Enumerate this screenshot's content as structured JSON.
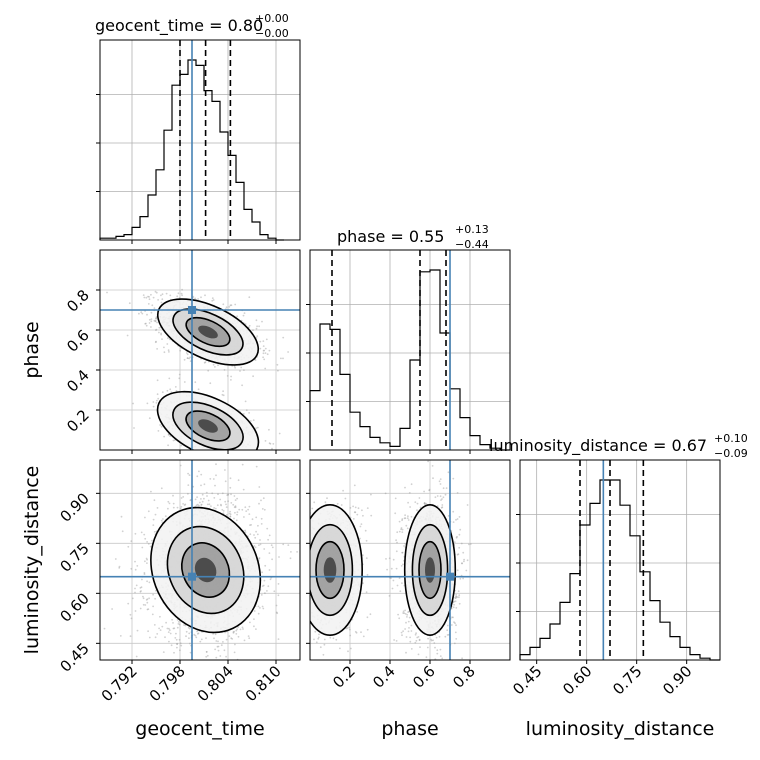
{
  "chart_data": {
    "type": "corner",
    "parameters": [
      "geocent_time",
      "phase",
      "luminosity_distance"
    ],
    "truth_color": "#4682b4",
    "grid": true,
    "panels": {
      "geocent_time": {
        "title": {
          "name": "geocent_time",
          "value": "0.80",
          "plus": "+0.00",
          "minus": "−0.00"
        },
        "xlim": [
          0.788,
          0.813
        ],
        "xticks": [
          "0.792",
          "0.798",
          "0.804",
          "0.810"
        ],
        "xtick_values": [
          0.792,
          0.798,
          0.804,
          0.81
        ],
        "quantiles": [
          0.798,
          0.8012,
          0.8043
        ],
        "truth": 0.7995,
        "hist": {
          "edges": [
            0.788,
            0.79,
            0.791,
            0.792,
            0.793,
            0.794,
            0.795,
            0.796,
            0.797,
            0.798,
            0.799,
            0.8,
            0.801,
            0.802,
            0.803,
            0.804,
            0.805,
            0.806,
            0.807,
            0.808,
            0.809,
            0.81,
            0.811
          ],
          "counts": [
            0.01,
            0.02,
            0.03,
            0.07,
            0.13,
            0.25,
            0.39,
            0.61,
            0.86,
            0.92,
            1.0,
            0.97,
            0.83,
            0.77,
            0.6,
            0.47,
            0.32,
            0.17,
            0.1,
            0.03,
            0.01,
            0.0
          ]
        }
      },
      "phase": {
        "title": {
          "name": "phase",
          "value": "0.55",
          "plus": "+0.13",
          "minus": "−0.44"
        },
        "xlim": [
          0.0,
          1.0
        ],
        "xticks": [
          "0.2",
          "0.4",
          "0.6",
          "0.8"
        ],
        "xtick_values": [
          0.2,
          0.4,
          0.6,
          0.8
        ],
        "yticks": [
          "0.2",
          "0.4",
          "0.6",
          "0.8"
        ],
        "ytick_values": [
          0.2,
          0.4,
          0.6,
          0.8
        ],
        "quantiles": [
          0.11,
          0.55,
          0.68
        ],
        "truth": 0.7,
        "hist": {
          "edges": [
            0.0,
            0.05,
            0.1,
            0.15,
            0.2,
            0.25,
            0.3,
            0.35,
            0.4,
            0.45,
            0.5,
            0.55,
            0.6,
            0.65,
            0.7,
            0.75,
            0.8,
            0.85,
            0.9,
            0.95,
            1.0
          ],
          "counts": [
            0.33,
            0.7,
            0.67,
            0.42,
            0.21,
            0.13,
            0.07,
            0.04,
            0.02,
            0.12,
            0.5,
            0.99,
            1.0,
            0.65,
            0.34,
            0.18,
            0.08,
            0.03,
            0.01,
            0.0
          ]
        }
      },
      "luminosity_distance": {
        "title": {
          "name": "luminosity_distance",
          "value": "0.67",
          "plus": "+0.10",
          "minus": "−0.09"
        },
        "xlim": [
          0.4,
          1.0
        ],
        "xticks": [
          "0.45",
          "0.60",
          "0.75",
          "0.90"
        ],
        "xtick_values": [
          0.45,
          0.6,
          0.75,
          0.9
        ],
        "yticks": [
          "0.45",
          "0.60",
          "0.75",
          "0.90"
        ],
        "ytick_values": [
          0.45,
          0.6,
          0.75,
          0.9
        ],
        "quantiles": [
          0.58,
          0.67,
          0.77
        ],
        "truth": 0.65,
        "hist": {
          "edges": [
            0.4,
            0.43,
            0.46,
            0.49,
            0.52,
            0.55,
            0.58,
            0.61,
            0.64,
            0.67,
            0.7,
            0.73,
            0.76,
            0.79,
            0.82,
            0.85,
            0.88,
            0.91,
            0.94,
            0.97,
            1.0
          ],
          "counts": [
            0.03,
            0.07,
            0.12,
            0.2,
            0.32,
            0.48,
            0.75,
            0.87,
            1.0,
            1.0,
            0.86,
            0.69,
            0.49,
            0.33,
            0.21,
            0.13,
            0.07,
            0.03,
            0.01,
            0.0
          ]
        }
      }
    },
    "pairs": [
      {
        "x": "geocent_time",
        "y": "phase",
        "truth": [
          0.7995,
          0.7
        ],
        "clusters": [
          {
            "cx": 0.8015,
            "cy": 0.59,
            "sx": 0.0025,
            "sy": 0.065,
            "rho": -0.5,
            "n": 1400
          },
          {
            "cx": 0.8015,
            "cy": 0.12,
            "sx": 0.0025,
            "sy": 0.07,
            "rho": -0.5,
            "n": 650
          }
        ]
      },
      {
        "x": "geocent_time",
        "y": "luminosity_distance",
        "truth": [
          0.7995,
          0.65
        ],
        "clusters": [
          {
            "cx": 0.8012,
            "cy": 0.67,
            "sx": 0.0028,
            "sy": 0.085,
            "rho": 0.05,
            "n": 2000
          }
        ]
      },
      {
        "x": "phase",
        "y": "luminosity_distance",
        "truth": [
          0.7,
          0.65
        ],
        "clusters": [
          {
            "cx": 0.6,
            "cy": 0.67,
            "sx": 0.055,
            "sy": 0.085,
            "rho": 0.0,
            "n": 1300
          },
          {
            "cx": 0.1,
            "cy": 0.67,
            "sx": 0.07,
            "sy": 0.085,
            "rho": 0.0,
            "n": 700
          }
        ]
      }
    ]
  }
}
